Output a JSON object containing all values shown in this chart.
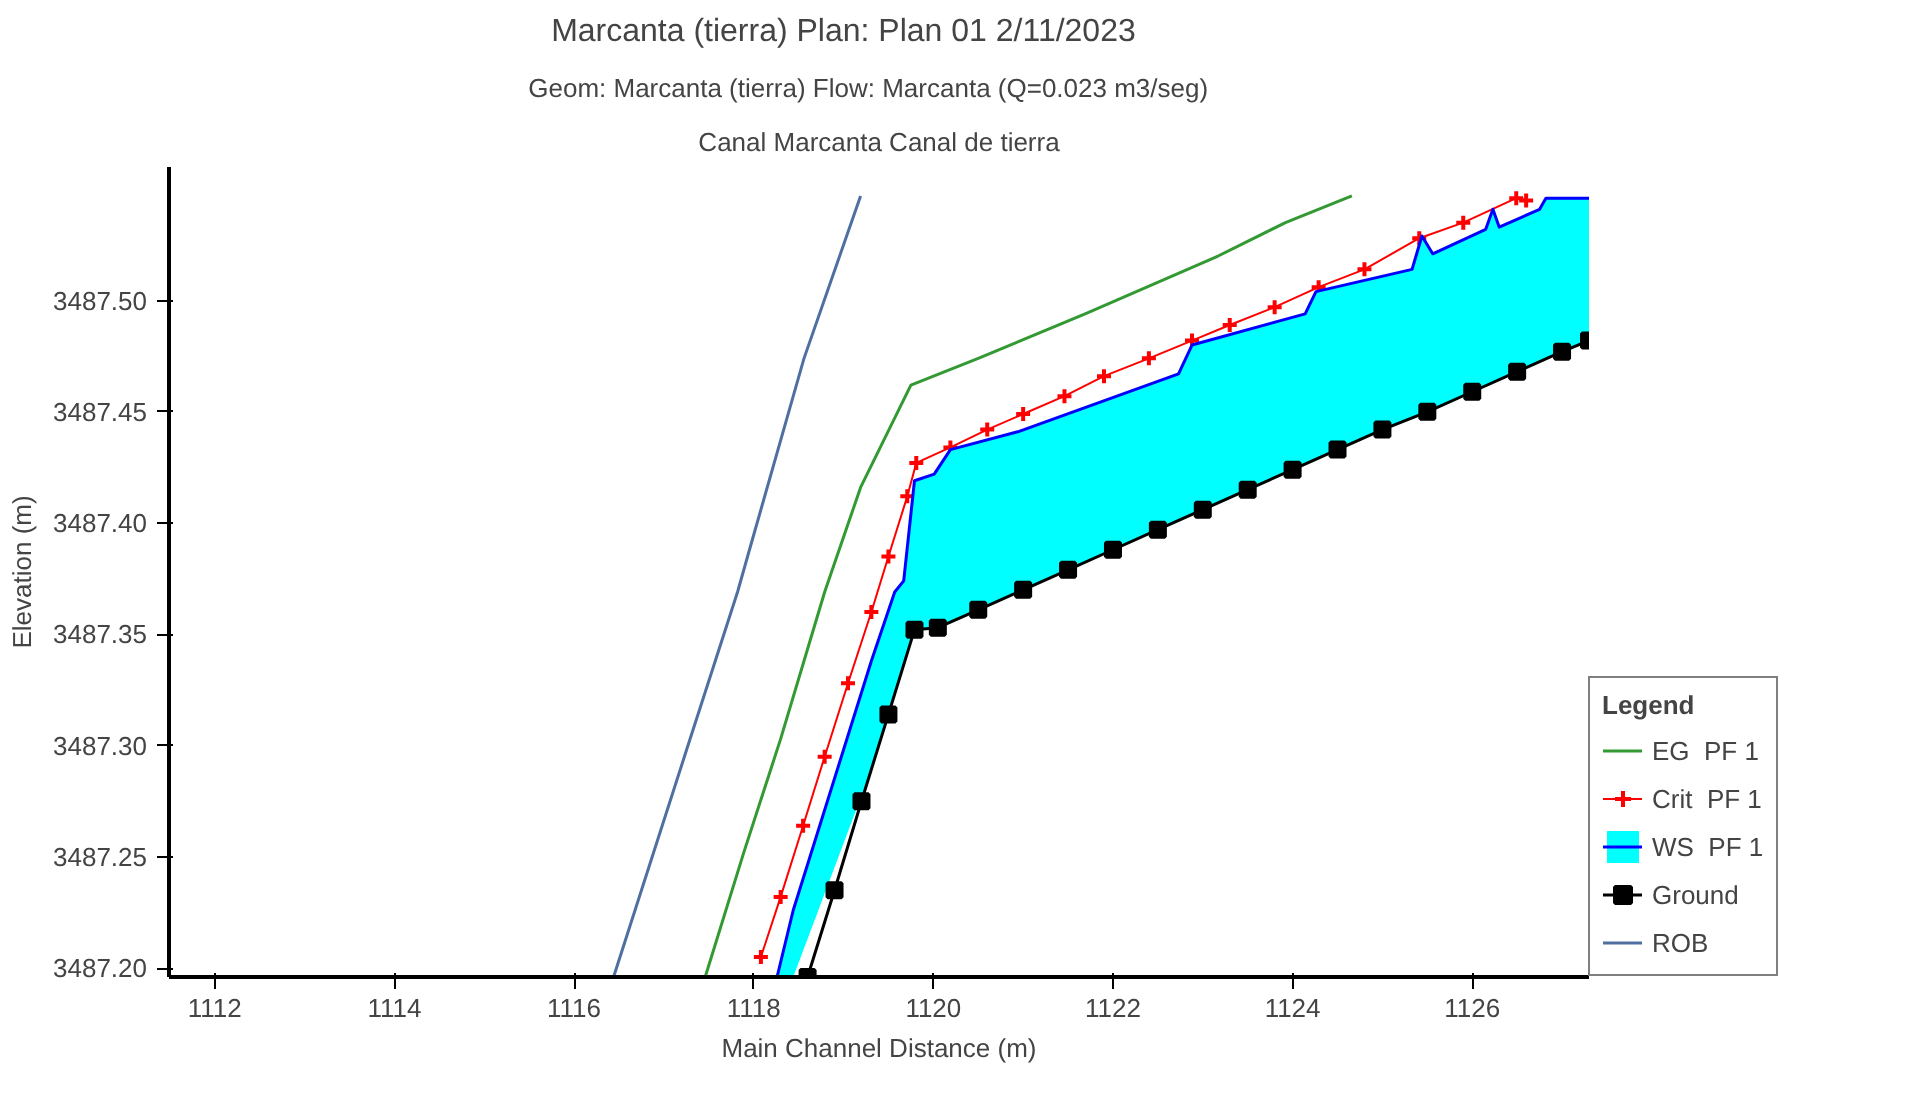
{
  "chart_data": {
    "type": "line",
    "title": "Marcanta (tierra)      Plan: Plan 01    2/11/2023",
    "subtitle": "Geom: Marcanta (tierra)    Flow: Marcanta (Q=0.023 m3/seg)",
    "annotations": [
      "Canal Marcanta Canal de tierra"
    ],
    "xlabel": "Main Channel Distance (m)",
    "ylabel": "Elevation (m)",
    "legend_title": "Legend",
    "xlim": [
      1111.49,
      1127.3
    ],
    "ylim": [
      3487.196,
      3487.56
    ],
    "xticks": [
      1112,
      1114,
      1116,
      1118,
      1120,
      1122,
      1124,
      1126
    ],
    "yticks": [
      {
        "value": 3487.2,
        "label": "3487.20"
      },
      {
        "value": 3487.25,
        "label": "3487.25"
      },
      {
        "value": 3487.3,
        "label": "3487.30"
      },
      {
        "value": 3487.35,
        "label": "3487.35"
      },
      {
        "value": 3487.4,
        "label": "3487.40"
      },
      {
        "value": 3487.45,
        "label": "3487.45"
      },
      {
        "value": 3487.5,
        "label": "3487.50"
      }
    ],
    "grid": false,
    "legend": "right",
    "series": [
      {
        "name": "EG  PF 1",
        "color": "#339933",
        "marker": "none",
        "x": [
          1117.46,
          1117.89,
          1118.3,
          1118.79,
          1119.19,
          1119.75,
          1120.5,
          1121.69,
          1123.17,
          1123.92,
          1124.66
        ],
        "values": [
          3487.196,
          3487.252,
          3487.303,
          3487.369,
          3487.416,
          3487.462,
          3487.474,
          3487.494,
          3487.52,
          3487.535,
          3487.547
        ]
      },
      {
        "name": "Crit  PF 1",
        "color": "#ff0000",
        "marker": "cross",
        "x": [
          1118.08,
          1118.3,
          1118.55,
          1118.79,
          1119.05,
          1119.31,
          1119.5,
          1119.71,
          1119.81,
          1120.19,
          1120.6,
          1121.0,
          1121.46,
          1121.9,
          1122.4,
          1122.88,
          1123.3,
          1123.8,
          1124.29,
          1124.8,
          1125.41,
          1125.9,
          1126.49,
          1126.6
        ],
        "values": [
          3487.205,
          3487.232,
          3487.264,
          3487.295,
          3487.328,
          3487.36,
          3487.385,
          3487.412,
          3487.427,
          3487.434,
          3487.442,
          3487.449,
          3487.457,
          3487.466,
          3487.474,
          3487.482,
          3487.489,
          3487.497,
          3487.506,
          3487.514,
          3487.528,
          3487.535,
          3487.546,
          3487.545
        ]
      },
      {
        "name": "WS  PF 1",
        "type": "area",
        "color": "#0000ff",
        "marker": "none",
        "x": [
          1118.26,
          1118.44,
          1119.31,
          1119.57,
          1119.67,
          1119.79,
          1120.01,
          1120.19,
          1120.94,
          1122.73,
          1122.88,
          1124.14,
          1124.26,
          1125.33,
          1125.44,
          1125.56,
          1126.15,
          1126.23,
          1126.3,
          1126.75,
          1126.82,
          1127.3
        ],
        "values": [
          3487.196,
          3487.226,
          3487.338,
          3487.369,
          3487.374,
          3487.419,
          3487.422,
          3487.433,
          3487.441,
          3487.467,
          3487.48,
          3487.494,
          3487.504,
          3487.514,
          3487.529,
          3487.521,
          3487.532,
          3487.541,
          3487.533,
          3487.541,
          3487.546,
          3487.546
        ]
      },
      {
        "name": "Ground",
        "color": "#000000",
        "marker": "square",
        "x": [
          1118.6,
          1118.9,
          1119.2,
          1119.5,
          1119.79,
          1120.05,
          1120.5,
          1121.0,
          1121.5,
          1122.0,
          1122.5,
          1123.0,
          1123.5,
          1124.0,
          1124.5,
          1125.0,
          1125.5,
          1126.0,
          1126.5,
          1127.0,
          1127.3
        ],
        "values": [
          3487.196,
          3487.235,
          3487.275,
          3487.314,
          3487.352,
          3487.353,
          3487.361,
          3487.37,
          3487.379,
          3487.388,
          3487.397,
          3487.406,
          3487.415,
          3487.424,
          3487.433,
          3487.442,
          3487.45,
          3487.459,
          3487.468,
          3487.477,
          3487.482
        ]
      },
      {
        "name": "ROB",
        "color": "#4f6fa0",
        "marker": "none",
        "x": [
          1116.44,
          1117.26,
          1117.82,
          1117.96,
          1118.56,
          1119.19
        ],
        "values": [
          3487.196,
          3487.299,
          3487.369,
          3487.389,
          3487.474,
          3487.547
        ]
      }
    ]
  }
}
